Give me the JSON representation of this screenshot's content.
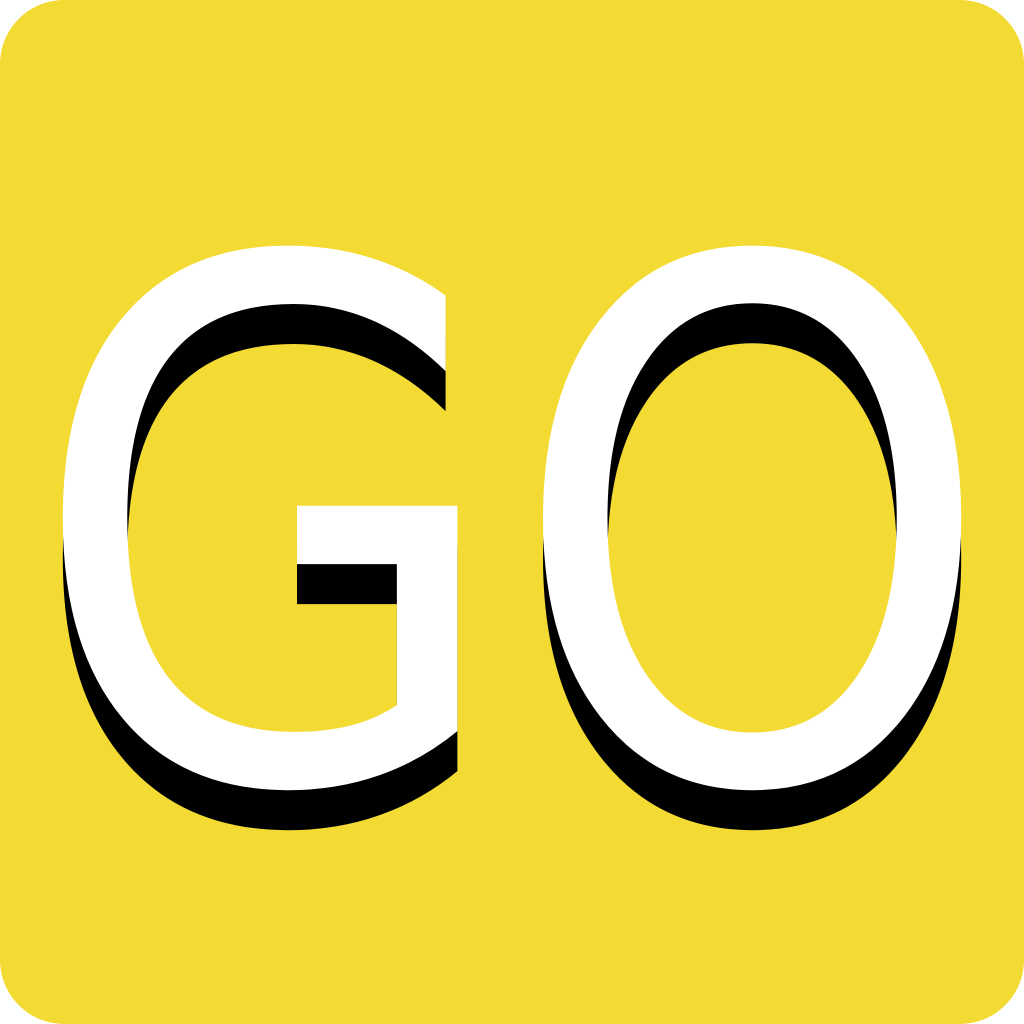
{
  "icon": {
    "text": "GO",
    "colors": {
      "background": "#F4DB33",
      "text_fill": "#FFFFFF",
      "shadow": "#000000"
    }
  }
}
